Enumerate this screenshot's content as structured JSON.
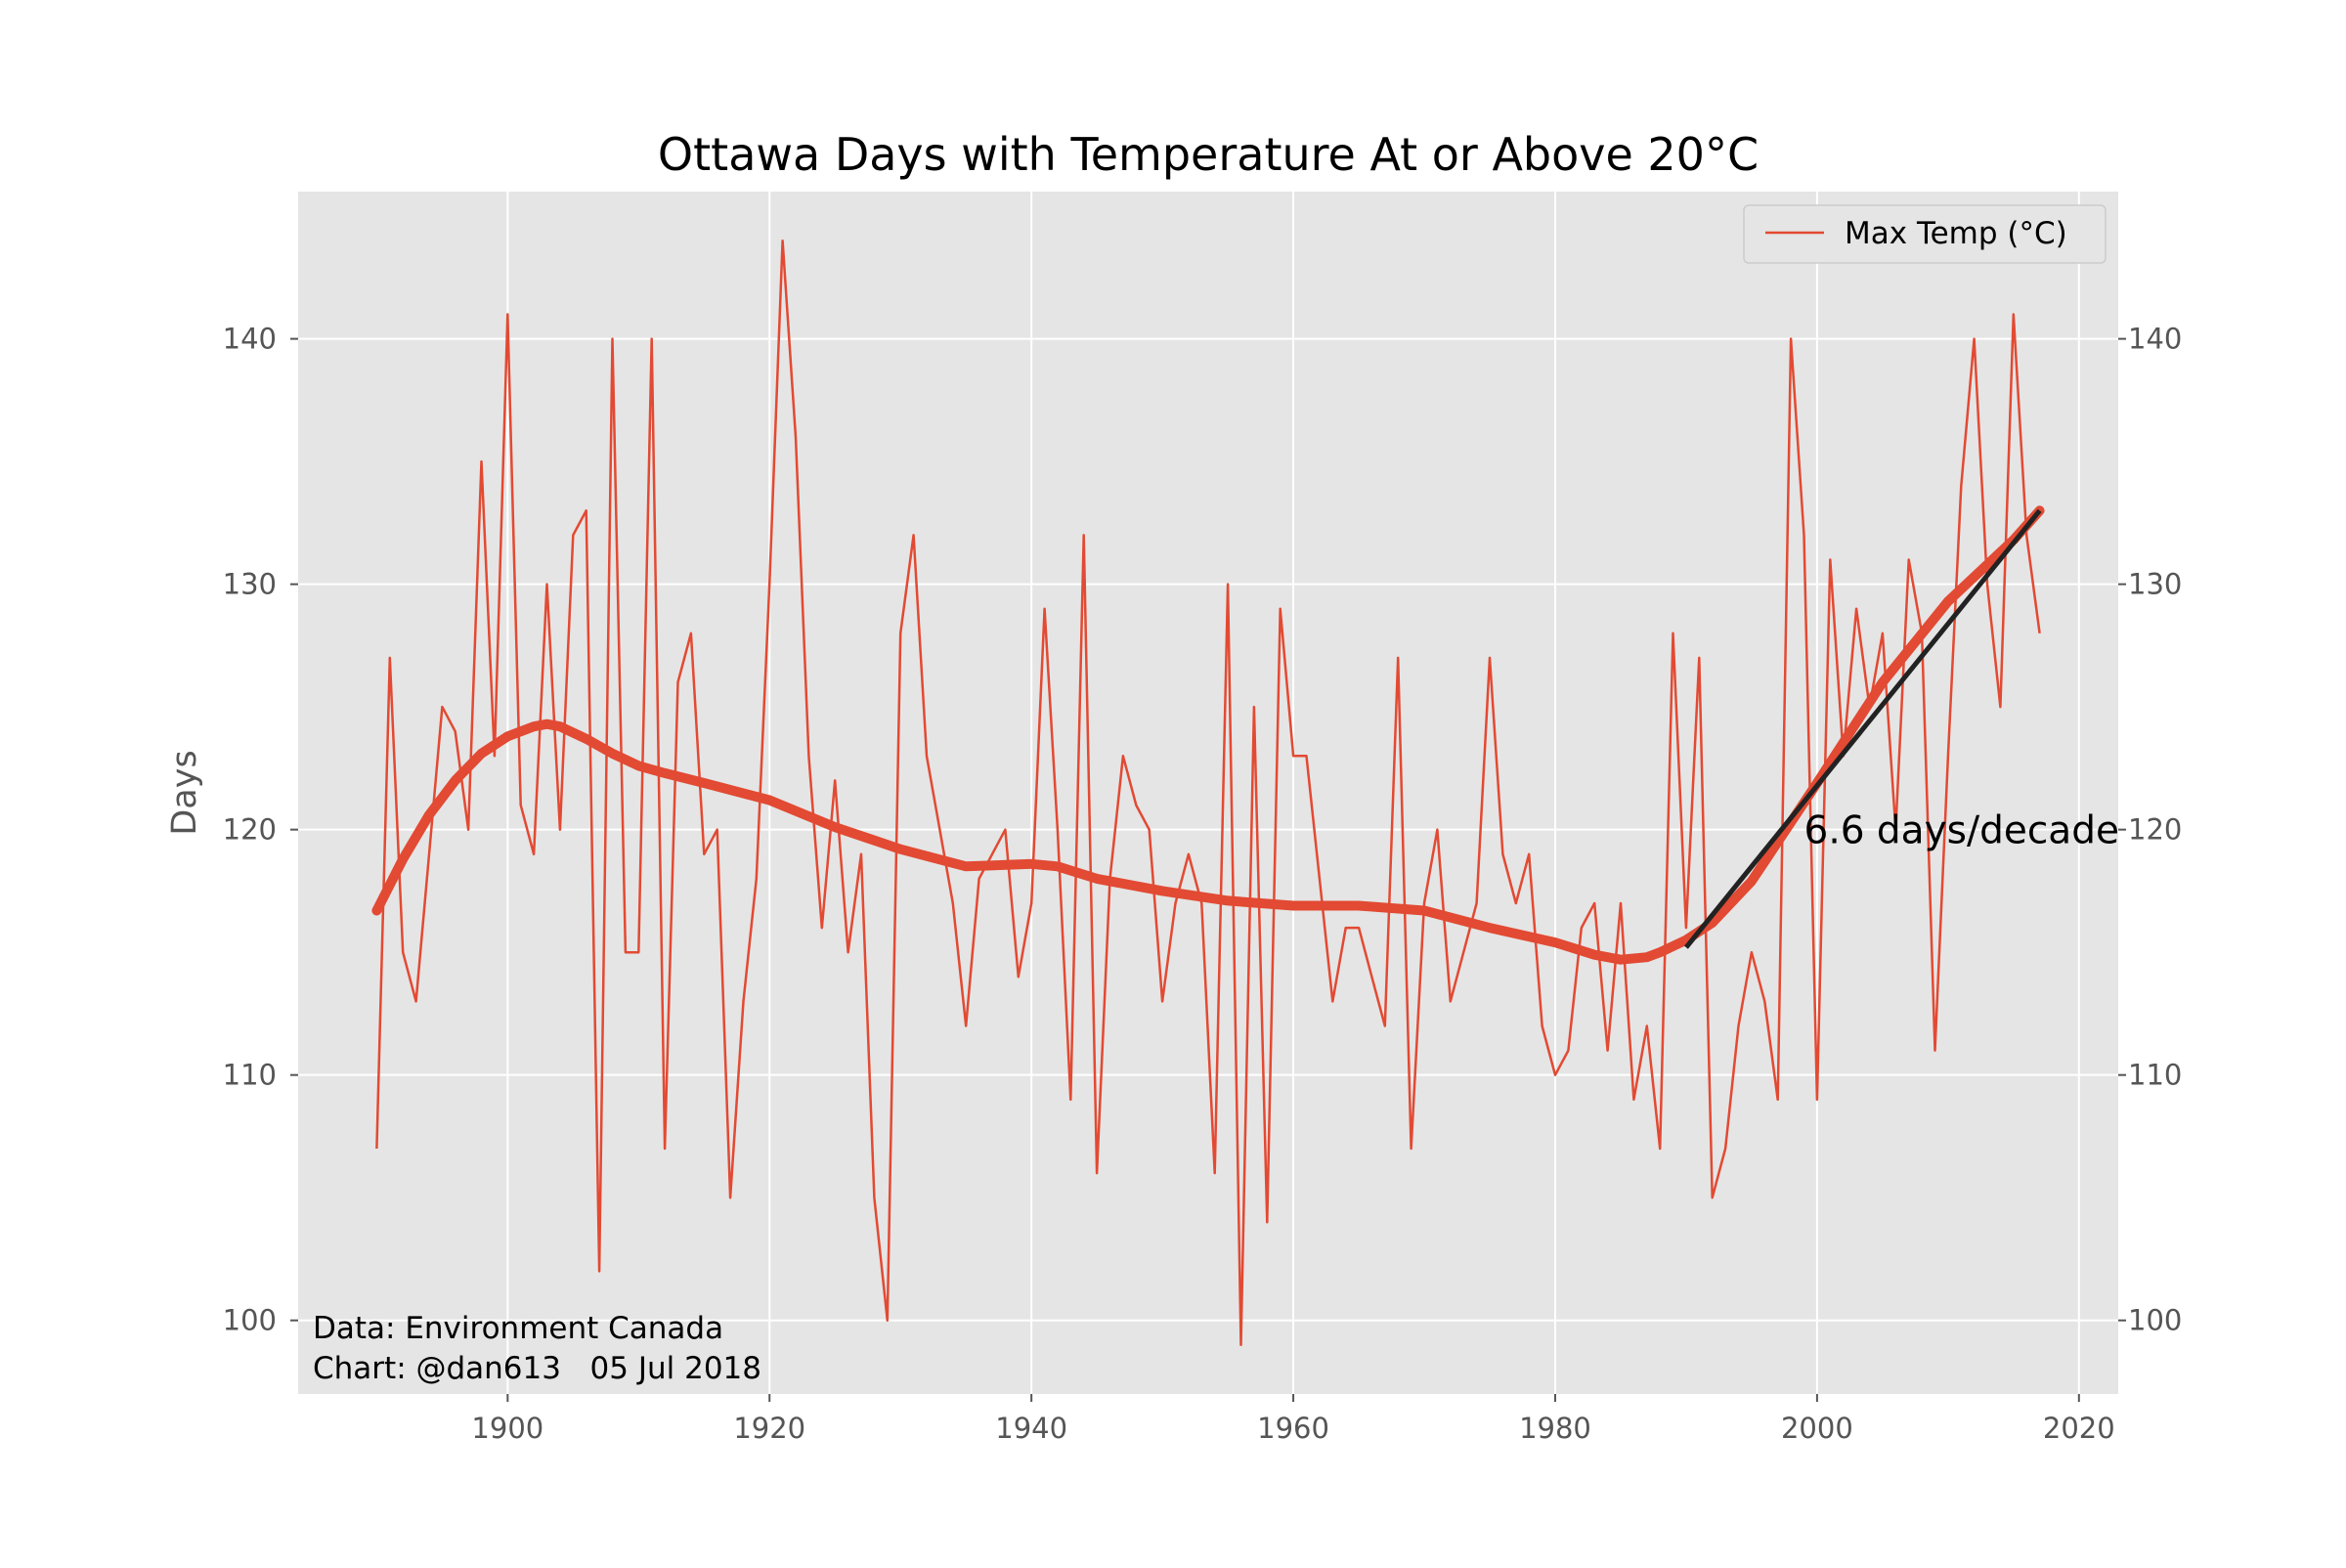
{
  "chart_data": {
    "type": "line",
    "title": "Ottawa Days with Temperature At or Above 20°C",
    "xlabel": "",
    "ylabel": "Days",
    "xlim": [
      1884,
      2023
    ],
    "ylim": [
      97,
      146
    ],
    "xticks": [
      1900,
      1920,
      1940,
      1960,
      1980,
      2000,
      2020
    ],
    "yticks": [
      100,
      110,
      120,
      130,
      140
    ],
    "grid": true,
    "legend": {
      "placement": "top-right",
      "entries": [
        "Max Temp (°C)"
      ]
    },
    "series": [
      {
        "name": "Max Temp (°C)",
        "color": "#e24a33",
        "x": [
          1890,
          1891,
          1892,
          1893,
          1894,
          1895,
          1896,
          1897,
          1898,
          1899,
          1900,
          1901,
          1902,
          1903,
          1904,
          1905,
          1906,
          1907,
          1908,
          1909,
          1910,
          1911,
          1912,
          1913,
          1914,
          1915,
          1916,
          1917,
          1918,
          1919,
          1920,
          1921,
          1922,
          1923,
          1924,
          1925,
          1926,
          1927,
          1928,
          1929,
          1930,
          1931,
          1932,
          1933,
          1934,
          1935,
          1936,
          1937,
          1938,
          1939,
          1940,
          1941,
          1942,
          1943,
          1944,
          1945,
          1946,
          1947,
          1948,
          1949,
          1950,
          1951,
          1952,
          1953,
          1954,
          1955,
          1956,
          1957,
          1958,
          1959,
          1960,
          1961,
          1962,
          1963,
          1964,
          1965,
          1966,
          1967,
          1968,
          1969,
          1970,
          1971,
          1972,
          1973,
          1974,
          1975,
          1976,
          1977,
          1978,
          1979,
          1980,
          1981,
          1982,
          1983,
          1984,
          1985,
          1986,
          1987,
          1988,
          1989,
          1990,
          1991,
          1992,
          1993,
          1994,
          1995,
          1996,
          1997,
          1998,
          1999,
          2000,
          2001,
          2002,
          2003,
          2004,
          2005,
          2006,
          2007,
          2008,
          2009,
          2010,
          2011,
          2012,
          2013,
          2014,
          2015,
          2016,
          2017
        ],
        "y": [
          107,
          127,
          115,
          113,
          119,
          125,
          124,
          120,
          135,
          123,
          141,
          121,
          119,
          130,
          120,
          132,
          133,
          102,
          140,
          115,
          115,
          140,
          107,
          126,
          128,
          119,
          120,
          105,
          113,
          118,
          130,
          144,
          136,
          123,
          116,
          122,
          115,
          119,
          105,
          100,
          128,
          132,
          123,
          120,
          117,
          112,
          118,
          119,
          120,
          114,
          117,
          129,
          120,
          109,
          132,
          106,
          118,
          123,
          121,
          120,
          113,
          117,
          119,
          117,
          106,
          130,
          99,
          125,
          104,
          129,
          123,
          123,
          118,
          113,
          116,
          116,
          114,
          112,
          127,
          107,
          117,
          120,
          113,
          115,
          117,
          127,
          119,
          117,
          119,
          112,
          110,
          111,
          116,
          117,
          111,
          117,
          109,
          112,
          107,
          128,
          116,
          127,
          105,
          107,
          112,
          115,
          113,
          109,
          140,
          132,
          109,
          131,
          123,
          129,
          125,
          128,
          120,
          131,
          128,
          111,
          123,
          134,
          140,
          130,
          125,
          141,
          132,
          128
        ]
      }
    ],
    "smoothed_trend": {
      "color": "#e24a33",
      "x": [
        1890,
        1892,
        1894,
        1896,
        1898,
        1900,
        1902,
        1903,
        1904,
        1906,
        1908,
        1910,
        1912,
        1915,
        1920,
        1925,
        1930,
        1935,
        1940,
        1942,
        1945,
        1950,
        1955,
        1960,
        1965,
        1970,
        1975,
        1980,
        1983,
        1985,
        1987,
        1988,
        1990,
        1992,
        1995,
        2000,
        2005,
        2010,
        2015,
        2017
      ],
      "y": [
        116.7,
        118.8,
        120.6,
        122.0,
        123.1,
        123.8,
        124.2,
        124.3,
        124.2,
        123.7,
        123.1,
        122.6,
        122.3,
        121.9,
        121.2,
        120.1,
        119.2,
        118.5,
        118.6,
        118.5,
        118.0,
        117.5,
        117.1,
        116.9,
        116.9,
        116.7,
        116.0,
        115.4,
        114.9,
        114.7,
        114.8,
        115.0,
        115.5,
        116.2,
        117.9,
        121.9,
        126.0,
        129.3,
        131.8,
        133.0
      ]
    },
    "linear_trend": {
      "color": "#222222",
      "x": [
        1990,
        2017
      ],
      "y": [
        115.2,
        133.0
      ]
    },
    "annotations": [
      {
        "text": "6.6 days/decade",
        "x": 1999,
        "y": 120
      }
    ],
    "credits": [
      "Data: Environment Canada",
      "Chart: @dan613   05 Jul 2018"
    ]
  }
}
